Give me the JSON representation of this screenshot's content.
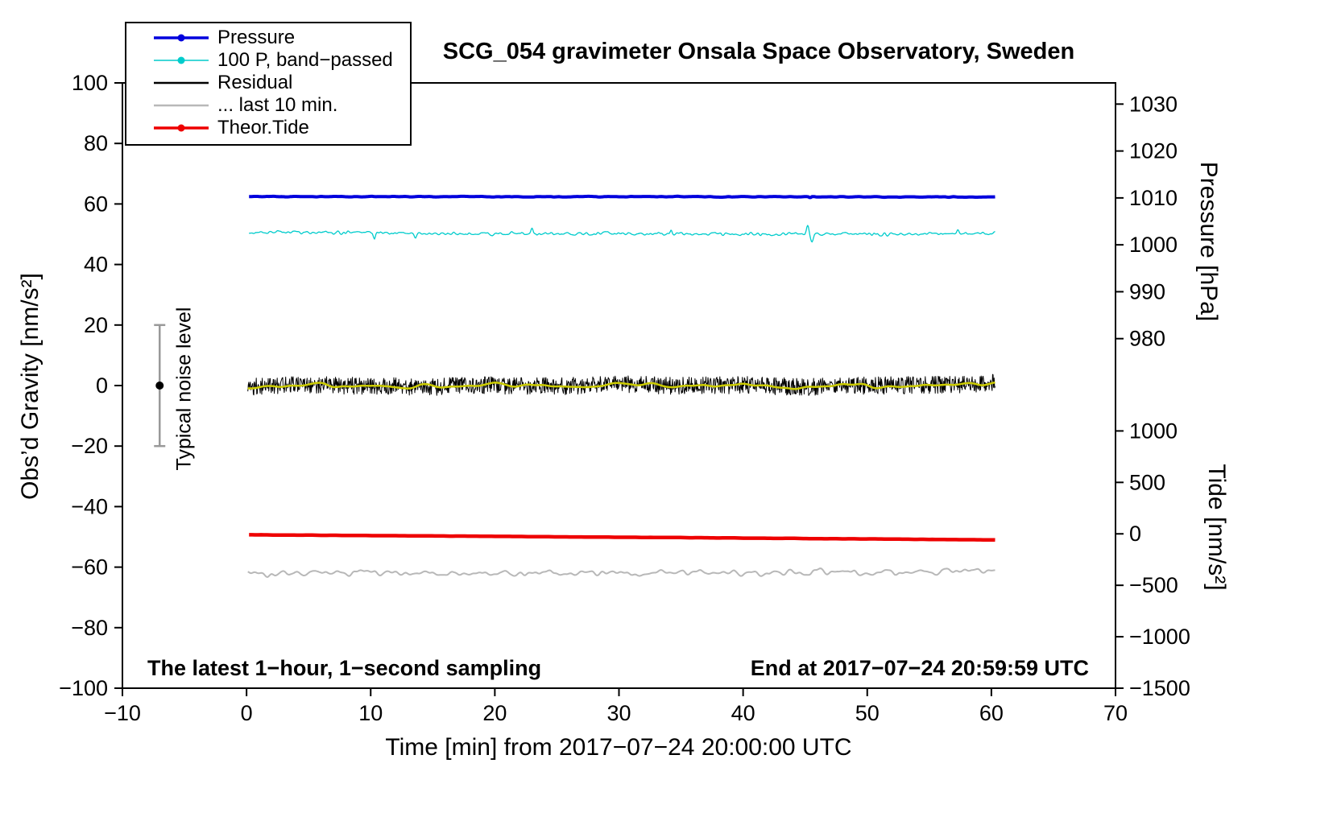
{
  "title": "SCG_054 gravimeter Onsala Space Observatory, Sweden",
  "annotations": {
    "sampling_note": "The latest 1−hour, 1−second sampling",
    "end_time": "End at 2017−07−24 20:59:59 UTC",
    "noise_label": "Typical noise level"
  },
  "axes": {
    "xlabel": "Time [min] from 2017−07−24 20:00:00 UTC",
    "ylabel_left": "Obs’d Gravity [nm/s²]",
    "ylabel_pressure": "Pressure [hPa]",
    "ylabel_tide": "Tide [nm/s²]"
  },
  "legend": {
    "items": [
      {
        "label": "Pressure",
        "color": "#0000dd",
        "marker": true,
        "line_width": 3.5
      },
      {
        "label": "100 P, band−passed",
        "color": "#00cccc",
        "marker": true,
        "line_width": 1.5
      },
      {
        "label": "Residual",
        "color": "#000000",
        "marker": false,
        "line_width": 2.5
      },
      {
        "label": "... last 10 min.",
        "color": "#b8b8b8",
        "marker": false,
        "line_width": 2.5
      },
      {
        "label": "Theor.Tide",
        "color": "#ee0000",
        "marker": true,
        "line_width": 3.5
      }
    ]
  },
  "chart_data": {
    "type": "line",
    "title": "SCG_054 gravimeter Onsala Space Observatory, Sweden",
    "xlabel": "Time [min] from 2017−07−24 20:00:00 UTC",
    "ylabel": "Obs’d Gravity [nm/s²]",
    "grid": false,
    "legend_position": "top-left",
    "xlim": [
      -10,
      70
    ],
    "ylim": [
      -100,
      100
    ],
    "noise_seed": 20170724,
    "x_ticks": [
      {
        "v": -10,
        "label": "−10"
      },
      {
        "v": 0,
        "label": "0"
      },
      {
        "v": 10,
        "label": "10"
      },
      {
        "v": 20,
        "label": "20"
      },
      {
        "v": 30,
        "label": "30"
      },
      {
        "v": 40,
        "label": "40"
      },
      {
        "v": 50,
        "label": "50"
      },
      {
        "v": 60,
        "label": "60"
      },
      {
        "v": 70,
        "label": "70"
      }
    ],
    "y_ticks_left": [
      {
        "v": 100,
        "label": "100"
      },
      {
        "v": 80,
        "label": "80"
      },
      {
        "v": 60,
        "label": "60"
      },
      {
        "v": 40,
        "label": "40"
      },
      {
        "v": 20,
        "label": "20"
      },
      {
        "v": 0,
        "label": "0"
      },
      {
        "v": -20,
        "label": "−20"
      },
      {
        "v": -40,
        "label": "−40"
      },
      {
        "v": -60,
        "label": "−60"
      },
      {
        "v": -80,
        "label": "−80"
      },
      {
        "v": -100,
        "label": "−100"
      }
    ],
    "y_ticks_pressure": [
      {
        "v": 93,
        "label": "1030"
      },
      {
        "v": 77.5,
        "label": "1020"
      },
      {
        "v": 62,
        "label": "1010"
      },
      {
        "v": 46.5,
        "label": "1000"
      },
      {
        "v": 31,
        "label": "990"
      },
      {
        "v": 15.5,
        "label": "980"
      }
    ],
    "y_ticks_tide": [
      {
        "v": -15,
        "label": "1000"
      },
      {
        "v": -32,
        "label": "500"
      },
      {
        "v": -49,
        "label": "0"
      },
      {
        "v": -66,
        "label": "−500"
      },
      {
        "v": -83,
        "label": "−1000"
      },
      {
        "v": -100,
        "label": "−1500"
      }
    ],
    "noise_marker": {
      "x": -7,
      "y_min": -20,
      "y_max": 20,
      "dot_y": 0,
      "bar_color": "#999999",
      "dot_color": "#000000"
    },
    "series": [
      {
        "id": "band_passed",
        "name": "100 P, band−passed",
        "color": "#00cccc",
        "width": 1.3,
        "x_range": [
          0.2,
          60.3
        ],
        "n_points": 1000,
        "noise": 0.7,
        "smooth": 2,
        "x": [
          0.2,
          10,
          20,
          30,
          40,
          50,
          60.3
        ],
        "y": [
          50.7,
          50.35,
          50.2,
          50.15,
          50.05,
          50.0,
          50.2
        ],
        "spikes": [
          {
            "x": 10.3,
            "dy": -2.0,
            "w": 0.08
          },
          {
            "x": 13.6,
            "dy": -1.6,
            "w": 0.08
          },
          {
            "x": 23.0,
            "dy": 1.6,
            "w": 0.08
          },
          {
            "x": 34.2,
            "dy": 1.7,
            "w": 0.08
          },
          {
            "x": 45.2,
            "dy": 3.0,
            "w": 0.1
          },
          {
            "x": 45.55,
            "dy": -2.6,
            "w": 0.1
          },
          {
            "x": 57.3,
            "dy": 1.3,
            "w": 0.08
          }
        ]
      },
      {
        "id": "pressure",
        "name": "Pressure",
        "color": "#0000dd",
        "width": 4,
        "x_range": [
          0.2,
          60.3
        ],
        "n_points": 600,
        "noise": 0.16,
        "smooth": 4,
        "x": [
          0.2,
          30,
          60.3
        ],
        "y": [
          62.45,
          62.4,
          62.3
        ],
        "spikes": [
          {
            "x": 45.4,
            "dy": -0.4,
            "w": 0.07
          }
        ]
      },
      {
        "id": "last10min",
        "name": "... last 10 min.",
        "color": "#b8b8b8",
        "width": 2,
        "x_range": [
          0.1,
          60.3
        ],
        "n_points": 650,
        "noise": 1.4,
        "smooth": 4,
        "x": [
          0.1,
          30,
          60.3
        ],
        "y": [
          -61.9,
          -62.0,
          -61.6
        ],
        "spikes": []
      },
      {
        "id": "residual",
        "name": "Residual",
        "color": "#000000",
        "width": 1,
        "x_range": [
          0.1,
          60.3
        ],
        "n_points": 1500,
        "noise": 2.9,
        "smooth": 0,
        "x": [
          0.1,
          5,
          10,
          15,
          20,
          25,
          30,
          35,
          40,
          45,
          50,
          55,
          58,
          60.3
        ],
        "y": [
          -0.4,
          0.3,
          -0.2,
          -0.4,
          0.1,
          -0.3,
          0.4,
          -0.1,
          0.2,
          -0.5,
          0.0,
          0.2,
          0.5,
          1.2
        ],
        "spikes": []
      },
      {
        "id": "residual_lowpass",
        "name": "Residual low−passed",
        "color": "#cccc00",
        "width": 2.5,
        "x_range": [
          0.1,
          60.3
        ],
        "n_points": 500,
        "noise": 0.9,
        "smooth": 22,
        "x": [
          0.1,
          5,
          10,
          15,
          20,
          25,
          30,
          35,
          40,
          45,
          50,
          55,
          58,
          60.3
        ],
        "y": [
          -0.4,
          0.3,
          -0.2,
          -0.4,
          0.1,
          -0.3,
          0.4,
          -0.1,
          0.2,
          -0.5,
          0.0,
          0.2,
          0.5,
          1.2
        ],
        "spikes": []
      },
      {
        "id": "theor_tide",
        "name": "Theor.Tide",
        "color": "#ee0000",
        "width": 4.5,
        "x_range": [
          0.2,
          60.3
        ],
        "n_points": 250,
        "noise": 0.05,
        "smooth": 2,
        "x": [
          0.2,
          15,
          30,
          45,
          60.3
        ],
        "y": [
          -49.3,
          -49.7,
          -50.1,
          -50.55,
          -51.0
        ],
        "spikes": []
      }
    ]
  }
}
